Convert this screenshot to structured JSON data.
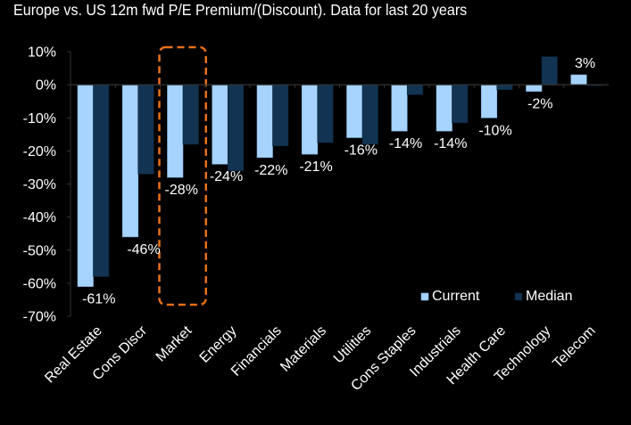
{
  "chart_data": {
    "type": "bar",
    "title": "Europe vs. US 12m fwd P/E Premium/(Discount). Data for last 20 years",
    "xlabel": "",
    "ylabel": "",
    "ylim": [
      -70,
      10
    ],
    "yticks": [
      10,
      0,
      -10,
      -20,
      -30,
      -40,
      -50,
      -60,
      -70
    ],
    "ytick_labels": [
      "10%",
      "0%",
      "-10%",
      "-20%",
      "-30%",
      "-40%",
      "-50%",
      "-60%",
      "-70%"
    ],
    "categories": [
      "Real Estate",
      "Cons Discr",
      "Market",
      "Energy",
      "Financials",
      "Materials",
      "Utilities",
      "Cons Staples",
      "Industrials",
      "Health Care",
      "Technology",
      "Telecom"
    ],
    "series": [
      {
        "name": "Current",
        "color": "#a6d4ff",
        "values": [
          -61,
          -46,
          -28,
          -24,
          -22,
          -21,
          -16,
          -14,
          -14,
          -10,
          -2,
          3
        ],
        "labels": [
          "-61%",
          "-46%",
          "-28%",
          "-24%",
          "-22%",
          "-21%",
          "-16%",
          "-14%",
          "-14%",
          "-10%",
          "-2%",
          "3%"
        ]
      },
      {
        "name": "Median",
        "color": "#123452",
        "values": [
          -58,
          -27,
          -18,
          -26,
          -18.5,
          -17.5,
          -18,
          -3,
          -11.5,
          -1.5,
          8.5,
          0
        ]
      }
    ],
    "legend": "bottom-right",
    "grid": false,
    "highlight": {
      "category": "Market",
      "style": "dashed rounded box",
      "color": "#e8701a"
    }
  }
}
